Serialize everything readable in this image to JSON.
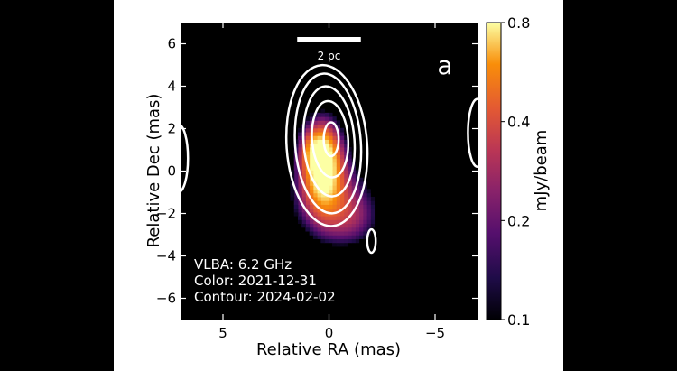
{
  "chart_data": {
    "type": "heatmap",
    "title": "",
    "panel_label": "a",
    "xlabel": "Relative RA (mas)",
    "ylabel": "Relative Dec (mas)",
    "xlim": [
      7,
      -7
    ],
    "ylim": [
      -7,
      7
    ],
    "x_ticks": [
      5,
      0,
      -5
    ],
    "y_ticks": [
      6,
      4,
      2,
      0,
      -2,
      -4,
      -6
    ],
    "x_tick_labels": [
      "5",
      "0",
      "−5"
    ],
    "y_tick_labels": [
      "6",
      "4",
      "2",
      "0",
      "−2",
      "−4",
      "−6"
    ],
    "colorbar": {
      "label": "mJy/beam",
      "range": [
        0.1,
        0.8
      ],
      "ticks": [
        0.1,
        0.2,
        0.4,
        0.8
      ],
      "tick_labels": [
        "0.1",
        "0.2",
        "0.4",
        "0.8"
      ],
      "colormap": "inferno"
    },
    "scale_bar": {
      "label": "2 pc",
      "length_mas": 3
    },
    "annotations": [
      "VLBA: 6.2 GHz",
      "Color: 2021-12-31",
      "Contour: 2024-02-02"
    ],
    "color_blobs": [
      {
        "x": 0.3,
        "y": 0.2,
        "sx": 0.6,
        "sy": 1.3,
        "peak": 0.8
      },
      {
        "x": 0.0,
        "y": -1.2,
        "sx": 1.2,
        "sy": 1.3,
        "peak": 0.25
      },
      {
        "x": -1.0,
        "y": -2.2,
        "sx": 0.9,
        "sy": 0.9,
        "peak": 0.18
      },
      {
        "x": 0.6,
        "y": 1.0,
        "sx": 0.5,
        "sy": 0.7,
        "peak": 0.35
      }
    ],
    "contours": [
      {
        "cx": 0.1,
        "cy": 1.2,
        "rx": 1.9,
        "ry": 3.8,
        "tilt": -4
      },
      {
        "cx": 0.05,
        "cy": 1.3,
        "rx": 1.55,
        "ry": 3.3,
        "tilt": -4
      },
      {
        "cx": 0.0,
        "cy": 1.4,
        "rx": 1.2,
        "ry": 2.6,
        "tilt": -4
      },
      {
        "cx": -0.05,
        "cy": 1.5,
        "rx": 0.85,
        "ry": 1.8,
        "tilt": -4
      },
      {
        "cx": -0.1,
        "cy": 1.5,
        "rx": 0.35,
        "ry": 0.8,
        "tilt": 0
      },
      {
        "cx": -2.0,
        "cy": -3.3,
        "rx": 0.2,
        "ry": 0.55,
        "tilt": 0
      },
      {
        "cx": 7.1,
        "cy": 0.6,
        "rx": 0.45,
        "ry": 1.6,
        "tilt": 0
      },
      {
        "cx": -7.0,
        "cy": 1.8,
        "rx": 0.45,
        "ry": 1.6,
        "tilt": 0
      }
    ],
    "grid": false,
    "colors": {
      "background": "#000000",
      "contour": "#ffffff",
      "page_background": "#000000"
    }
  }
}
